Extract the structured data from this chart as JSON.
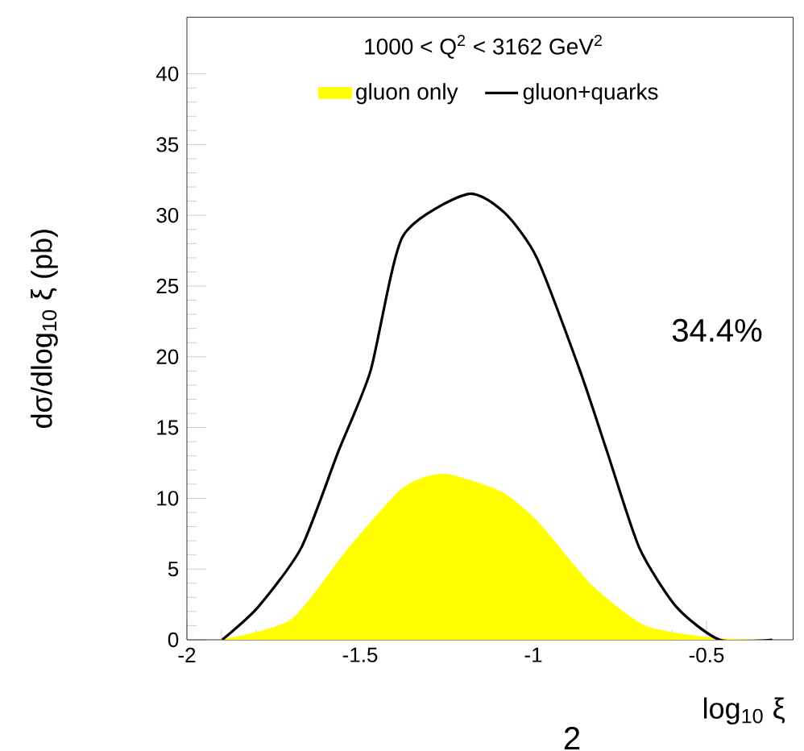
{
  "chart_data": {
    "type": "line",
    "xlabel": "log$_{10}$ ξ",
    "ylabel": "dσ/dlog$_{10}$ ξ (pb)",
    "annotations": [
      "1000 < Q$^{2}$ < 3162 GeV$^{2}$",
      "34.4%",
      "2"
    ],
    "xlim": [
      -2,
      -0.25
    ],
    "ylim": [
      0,
      44
    ],
    "xticks": [
      -2,
      -1.5,
      -1,
      -0.5
    ],
    "yticks": [
      0,
      5,
      10,
      15,
      20,
      25,
      30,
      35,
      40
    ],
    "legend": "top",
    "series": [
      {
        "name": "gluon only",
        "type": "area",
        "color": "#ffff00",
        "x": [
          -1.9,
          -1.7,
          -1.532,
          -1.377,
          -1.26,
          -1.098,
          -0.99,
          -0.834,
          -0.679,
          -0.479,
          -0.31
        ],
        "values": [
          0,
          1.4,
          6.5,
          10.7,
          11.7,
          10.5,
          8.4,
          3.9,
          1.0,
          0.1,
          0
        ]
      },
      {
        "name": "gluon+quarks",
        "color": "#000000",
        "x": [
          -1.898,
          -1.795,
          -1.67,
          -1.563,
          -1.47,
          -1.377,
          -1.19,
          -1.084,
          -0.99,
          -0.865,
          -0.787,
          -0.694,
          -0.586,
          -0.462,
          -0.31
        ],
        "values": [
          0,
          2.3,
          6.5,
          13.3,
          19.0,
          28.5,
          31.5,
          30.2,
          27.0,
          19.0,
          13.3,
          6.5,
          2.3,
          0,
          0
        ]
      }
    ]
  }
}
